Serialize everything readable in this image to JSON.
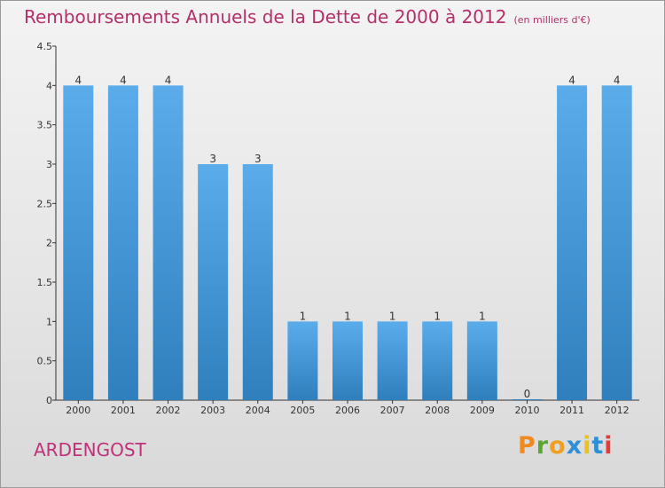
{
  "chart_data": {
    "type": "bar",
    "title": "Remboursements Annuels de la Dette de 2000 à 2012",
    "subtitle": "(en milliers d'€)",
    "categories": [
      "2000",
      "2001",
      "2002",
      "2003",
      "2004",
      "2005",
      "2006",
      "2007",
      "2008",
      "2009",
      "2010",
      "2011",
      "2012"
    ],
    "values": [
      4,
      4,
      4,
      3,
      3,
      1,
      1,
      1,
      1,
      1,
      0,
      4,
      4
    ],
    "data_labels": [
      "4",
      "4",
      "4",
      "3",
      "3",
      "1",
      "1",
      "1",
      "1",
      "1",
      "0",
      "4",
      "4"
    ],
    "ylim": [
      0,
      4.5
    ],
    "yticks": [
      "0",
      "0.5",
      "1",
      "1.5",
      "2",
      "2.5",
      "3",
      "3.5",
      "4",
      "4.5"
    ],
    "xlabel": "",
    "ylabel": "",
    "bar_color": "#4a9ad8"
  },
  "footer": {
    "town": "ARDENGOST",
    "logo": "Proxiti"
  },
  "logo_colors": [
    "#f08a1e",
    "#5aa832",
    "#f0a01e",
    "#2e8fd6",
    "#e8c21a",
    "#2e8fd6",
    "#e23d3d"
  ]
}
